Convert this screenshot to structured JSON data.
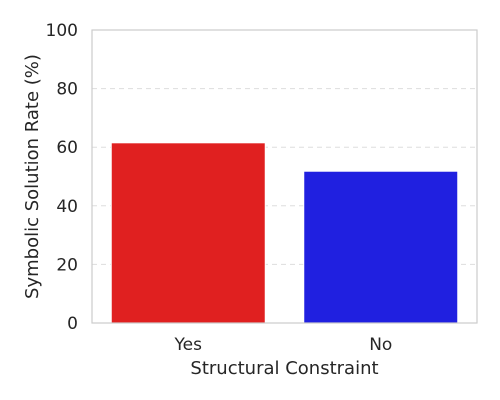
{
  "chart_data": {
    "type": "bar",
    "categories": [
      "Yes",
      "No"
    ],
    "values": [
      61.5,
      51.8
    ],
    "colors": [
      "#e02020",
      "#2020e0"
    ],
    "xlabel": "Structural Constraint",
    "ylabel": "Symbolic Solution Rate (%)",
    "ylim": [
      0,
      100
    ],
    "yticks": [
      0,
      20,
      40,
      60,
      80,
      100
    ],
    "grid": true
  }
}
